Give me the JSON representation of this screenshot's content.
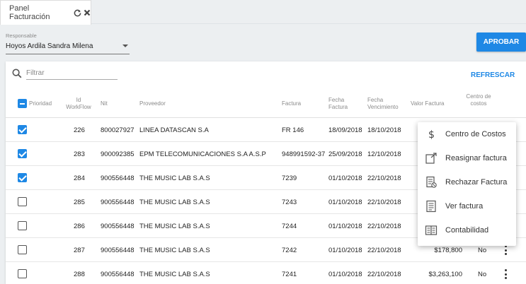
{
  "tab": {
    "title": "Panel Facturación",
    "refresh_icon": "refresh-icon",
    "close_icon": "close-icon"
  },
  "filters": {
    "responsable_label": "Responsable",
    "responsable_value": "Hoyos Ardila Sandra Milena",
    "approve_label": "APROBAR"
  },
  "toolbar": {
    "filter_placeholder": "Filtrar",
    "filter_value": "",
    "refresh_label": "REFRESCAR"
  },
  "table": {
    "headers": {
      "prioridad": "Prioridad",
      "id_workflow": "Id WorkFlow",
      "nit": "Nit",
      "proveedor": "Proveedor",
      "factura": "Factura",
      "fecha_factura": "Fecha Factura",
      "fecha_vencimiento": "Fecha Vencimiento",
      "valor_factura": "Valor Factura",
      "centro_costos": "Centro de costos"
    },
    "rows": [
      {
        "checked": true,
        "id": "226",
        "nit": "800027927",
        "proveedor": "LINEA DATASCAN S.A",
        "factura": "FR 146",
        "fecha_factura": "18/09/2018",
        "fecha_vencimiento": "18/10/2018",
        "valor": "",
        "centro": ""
      },
      {
        "checked": true,
        "id": "283",
        "nit": "900092385",
        "proveedor": "EPM TELECOMUNICACIONES S.A A.S.P",
        "factura": "948991592-37",
        "fecha_factura": "25/09/2018",
        "fecha_vencimiento": "12/10/2018",
        "valor": "",
        "centro": ""
      },
      {
        "checked": true,
        "id": "284",
        "nit": "900556448",
        "proveedor": "THE MUSIC LAB S.A.S",
        "factura": "7239",
        "fecha_factura": "01/10/2018",
        "fecha_vencimiento": "22/10/2018",
        "valor": "",
        "centro": ""
      },
      {
        "checked": false,
        "id": "285",
        "nit": "900556448",
        "proveedor": "THE MUSIC LAB S.A.S",
        "factura": "7243",
        "fecha_factura": "01/10/2018",
        "fecha_vencimiento": "22/10/2018",
        "valor": "",
        "centro": ""
      },
      {
        "checked": false,
        "id": "286",
        "nit": "900556448",
        "proveedor": "THE MUSIC LAB S.A.S",
        "factura": "7244",
        "fecha_factura": "01/10/2018",
        "fecha_vencimiento": "22/10/2018",
        "valor": "",
        "centro": ""
      },
      {
        "checked": false,
        "id": "287",
        "nit": "900556448",
        "proveedor": "THE MUSIC LAB S.A.S",
        "factura": "7242",
        "fecha_factura": "01/10/2018",
        "fecha_vencimiento": "22/10/2018",
        "valor": "$178,800",
        "centro": "No"
      },
      {
        "checked": false,
        "id": "288",
        "nit": "900556448",
        "proveedor": "THE MUSIC LAB S.A.S",
        "factura": "7241",
        "fecha_factura": "01/10/2018",
        "fecha_vencimiento": "22/10/2018",
        "valor": "$3,263,100",
        "centro": "No"
      }
    ]
  },
  "context_menu": {
    "items": [
      {
        "label": "Centro de Costos",
        "icon": "dollar-icon"
      },
      {
        "label": "Reasignar factura",
        "icon": "reassign-icon"
      },
      {
        "label": "Rechazar Factura",
        "icon": "reject-invoice-icon"
      },
      {
        "label": "Ver factura",
        "icon": "view-invoice-icon"
      },
      {
        "label": "Contabilidad",
        "icon": "accounting-icon"
      }
    ]
  },
  "colors": {
    "accent": "#1e88e5",
    "background": "#eceff1"
  }
}
